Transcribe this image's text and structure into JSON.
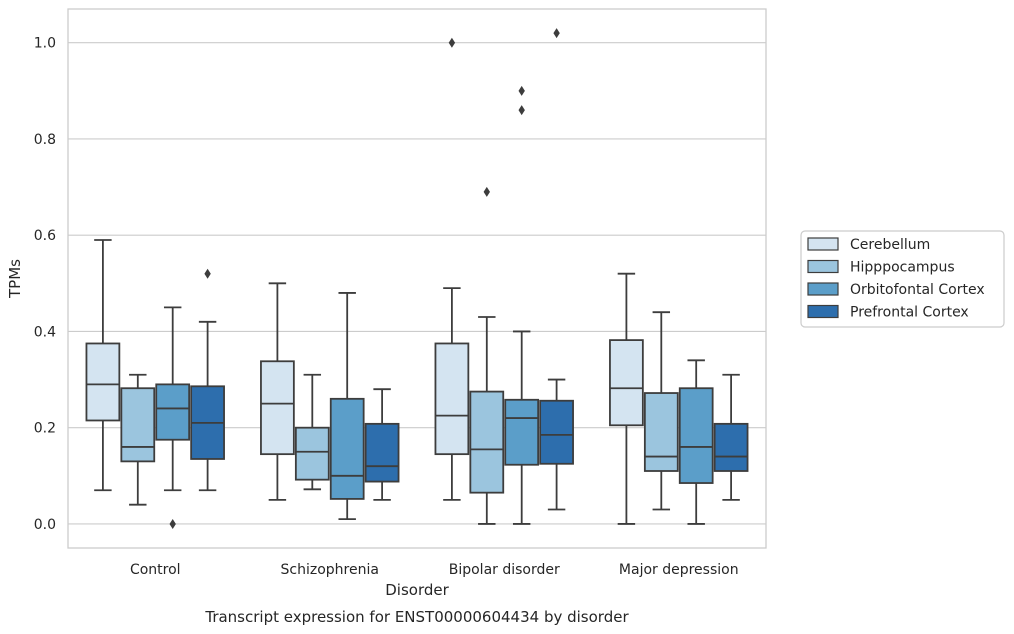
{
  "chart_data": {
    "type": "box",
    "title": "",
    "xlabel": "Disorder",
    "ylabel": "TPMs",
    "caption": "Transcript expression for ENST00000604434 by disorder",
    "ylim": [
      -0.05,
      1.07
    ],
    "yticks": [
      0.0,
      0.2,
      0.4,
      0.6,
      0.8,
      1.0
    ],
    "ytick_labels": [
      "0.0",
      "0.2",
      "0.4",
      "0.6",
      "0.8",
      "1.0"
    ],
    "grid": true,
    "legend_position": "right",
    "categories": [
      "Control",
      "Schizophrenia",
      "Bipolar disorder",
      "Major depression"
    ],
    "series": [
      {
        "name": "Cerebellum",
        "color": "#d4e4f1",
        "boxes": [
          {
            "whisker_low": 0.07,
            "q1": 0.215,
            "median": 0.29,
            "q3": 0.375,
            "whisker_high": 0.59,
            "outliers": []
          },
          {
            "whisker_low": 0.05,
            "q1": 0.145,
            "median": 0.25,
            "q3": 0.338,
            "whisker_high": 0.5,
            "outliers": []
          },
          {
            "whisker_low": 0.05,
            "q1": 0.145,
            "median": 0.225,
            "q3": 0.375,
            "whisker_high": 0.49,
            "outliers": [
              1.0
            ]
          },
          {
            "whisker_low": 0.0,
            "q1": 0.205,
            "median": 0.282,
            "q3": 0.382,
            "whisker_high": 0.52,
            "outliers": []
          }
        ]
      },
      {
        "name": "Hipppocampus",
        "color": "#9bc5de",
        "boxes": [
          {
            "whisker_low": 0.04,
            "q1": 0.13,
            "median": 0.16,
            "q3": 0.282,
            "whisker_high": 0.31,
            "outliers": []
          },
          {
            "whisker_low": 0.072,
            "q1": 0.092,
            "median": 0.15,
            "q3": 0.2,
            "whisker_high": 0.31,
            "outliers": []
          },
          {
            "whisker_low": 0.0,
            "q1": 0.065,
            "median": 0.155,
            "q3": 0.275,
            "whisker_high": 0.43,
            "outliers": [
              0.69
            ]
          },
          {
            "whisker_low": 0.03,
            "q1": 0.11,
            "median": 0.14,
            "q3": 0.272,
            "whisker_high": 0.44,
            "outliers": []
          }
        ]
      },
      {
        "name": "Orbitofontal Cortex",
        "color": "#5b9ec9",
        "boxes": [
          {
            "whisker_low": 0.07,
            "q1": 0.175,
            "median": 0.24,
            "q3": 0.29,
            "whisker_high": 0.45,
            "outliers": [
              0.0
            ]
          },
          {
            "whisker_low": 0.01,
            "q1": 0.052,
            "median": 0.1,
            "q3": 0.26,
            "whisker_high": 0.48,
            "outliers": []
          },
          {
            "whisker_low": 0.0,
            "q1": 0.123,
            "median": 0.22,
            "q3": 0.258,
            "whisker_high": 0.4,
            "outliers": [
              0.86,
              0.9
            ]
          },
          {
            "whisker_low": 0.0,
            "q1": 0.085,
            "median": 0.16,
            "q3": 0.282,
            "whisker_high": 0.34,
            "outliers": []
          }
        ]
      },
      {
        "name": "Prefrontal Cortex",
        "color": "#2d6ead",
        "boxes": [
          {
            "whisker_low": 0.07,
            "q1": 0.135,
            "median": 0.21,
            "q3": 0.286,
            "whisker_high": 0.42,
            "outliers": [
              0.52
            ]
          },
          {
            "whisker_low": 0.05,
            "q1": 0.088,
            "median": 0.12,
            "q3": 0.208,
            "whisker_high": 0.28,
            "outliers": []
          },
          {
            "whisker_low": 0.03,
            "q1": 0.125,
            "median": 0.185,
            "q3": 0.256,
            "whisker_high": 0.3,
            "outliers": [
              1.02
            ]
          },
          {
            "whisker_low": 0.05,
            "q1": 0.11,
            "median": 0.14,
            "q3": 0.208,
            "whisker_high": 0.31,
            "outliers": []
          }
        ]
      }
    ]
  }
}
